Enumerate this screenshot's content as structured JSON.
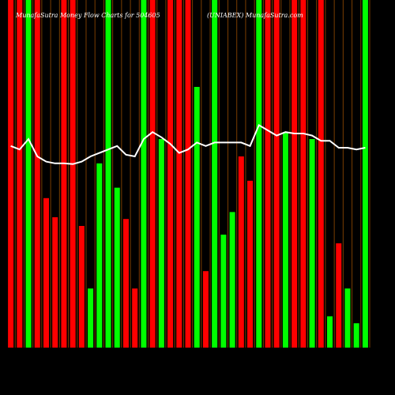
{
  "chart_data": {
    "type": "bar",
    "title": "MunafaSutra Money Flow Charts for 504605",
    "subtitle": "(UNIABEX) MunafaSutra.com",
    "ylim": [
      0,
      100
    ],
    "values": [
      100,
      100,
      100,
      100,
      43,
      37.5,
      100,
      100,
      35,
      17,
      53,
      100,
      46,
      37,
      17,
      100,
      100,
      60,
      100,
      100,
      100,
      75,
      22,
      100,
      32.5,
      39,
      55,
      48,
      100,
      100,
      100,
      62,
      100,
      100,
      60,
      100,
      9,
      30,
      17,
      7,
      100
    ],
    "colors": [
      "red",
      "red",
      "#00ff00",
      "red",
      "red",
      "red",
      "red",
      "red",
      "red",
      "#00ff00",
      "#00ff00",
      "#00ff00",
      "#00ff00",
      "red",
      "red",
      "#00ff00",
      "red",
      "#00ff00",
      "red",
      "red",
      "red",
      "#00ff00",
      "red",
      "#00ff00",
      "#00ff00",
      "#00ff00",
      "red",
      "red",
      "#00ff00",
      "red",
      "red",
      "#00ff00",
      "red",
      "red",
      "#00ff00",
      "red",
      "#00ff00",
      "red",
      "#00ff00",
      "#00ff00",
      "#00ff00"
    ],
    "line": {
      "color": "#ffffff",
      "values": [
        58,
        57,
        60,
        55,
        53.5,
        53,
        53,
        52.8,
        53.5,
        55,
        56,
        57,
        58,
        55.5,
        55,
        60,
        62,
        60.5,
        58.6,
        56,
        57,
        59,
        58,
        59,
        59,
        59,
        59,
        58,
        64,
        62.5,
        61,
        62,
        61.6,
        61.6,
        61,
        59.5,
        59.5,
        57.5,
        57.5,
        57,
        57.5
      ]
    }
  }
}
